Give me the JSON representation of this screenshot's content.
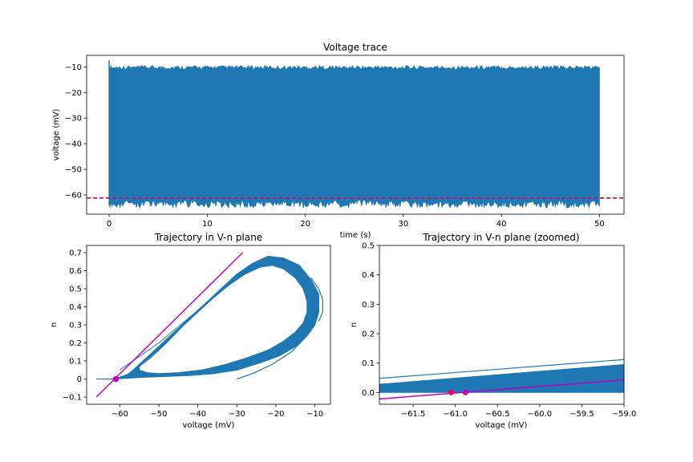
{
  "colors": {
    "trace": "#1f77b4",
    "threshold": "#d62728",
    "threshold_dash": "#9400d3",
    "nullcline": "#bf00bf",
    "fixed_point": "#bf00bf",
    "fixed_point_red": "#ff0050"
  },
  "chart_data": [
    {
      "type": "line",
      "title": "Voltage trace",
      "xlabel": "time (s)",
      "ylabel": "voltage (mV)",
      "xlim": [
        -2.3,
        52.5
      ],
      "ylim": [
        -67.5,
        -5.5
      ],
      "xticks": [
        0,
        10,
        20,
        30,
        40,
        50
      ],
      "yticks": [
        -60,
        -50,
        -40,
        -30,
        -20,
        -10
      ],
      "series": [
        {
          "fill_band": {
            "x": [
              0.05,
              50
            ],
            "ymin": -64,
            "ymax": -10,
            "noise_low": [
              -65,
              -62
            ],
            "noise_high": [
              -11,
              -9.5
            ]
          },
          "onset_spike": {
            "x": 0,
            "y": [
              -7.5,
              -64
            ]
          },
          "threshold_line": {
            "y": -61.2,
            "style": "dashed"
          }
        }
      ]
    },
    {
      "type": "line",
      "title": "Trajectory in V-n plane",
      "xlabel": "voltage (mV)",
      "ylabel": "n",
      "xlim": [
        -68.5,
        -6
      ],
      "ylim": [
        -0.14,
        0.74
      ],
      "xticks": [
        -60,
        -50,
        -40,
        -30,
        -20,
        -10
      ],
      "yticks": [
        -0.1,
        0.0,
        0.1,
        0.2,
        0.3,
        0.4,
        0.5,
        0.6,
        0.7
      ],
      "limit_cycle_outer": [
        [
          -66,
          0.0
        ],
        [
          -62,
          0.0
        ],
        [
          -60,
          0.01
        ],
        [
          -58,
          0.025
        ],
        [
          -56,
          0.06
        ],
        [
          -54,
          0.1
        ],
        [
          -52,
          0.14
        ],
        [
          -50,
          0.18
        ],
        [
          -46,
          0.26
        ],
        [
          -42,
          0.34
        ],
        [
          -38,
          0.42
        ],
        [
          -34,
          0.5
        ],
        [
          -30,
          0.58
        ],
        [
          -26,
          0.64
        ],
        [
          -22,
          0.68
        ],
        [
          -18,
          0.67
        ],
        [
          -14,
          0.63
        ],
        [
          -11,
          0.55
        ],
        [
          -9,
          0.47
        ],
        [
          -9,
          0.37
        ],
        [
          -10,
          0.3
        ],
        [
          -12,
          0.24
        ],
        [
          -15,
          0.18
        ],
        [
          -19,
          0.13
        ],
        [
          -24,
          0.09
        ],
        [
          -30,
          0.05
        ],
        [
          -36,
          0.03
        ],
        [
          -42,
          0.02
        ],
        [
          -48,
          0.015
        ],
        [
          -54,
          0.01
        ],
        [
          -58,
          0.005
        ],
        [
          -62,
          0.0
        ]
      ],
      "limit_cycle_inner": [
        [
          -55,
          0.07
        ],
        [
          -52,
          0.12
        ],
        [
          -48,
          0.2
        ],
        [
          -44,
          0.29
        ],
        [
          -40,
          0.37
        ],
        [
          -36,
          0.45
        ],
        [
          -32,
          0.52
        ],
        [
          -28,
          0.58
        ],
        [
          -24,
          0.62
        ],
        [
          -21,
          0.63
        ],
        [
          -18,
          0.61
        ],
        [
          -15,
          0.56
        ],
        [
          -13,
          0.5
        ],
        [
          -12,
          0.43
        ],
        [
          -12,
          0.37
        ],
        [
          -13,
          0.31
        ],
        [
          -15,
          0.26
        ],
        [
          -18,
          0.21
        ],
        [
          -22,
          0.16
        ],
        [
          -27,
          0.12
        ],
        [
          -33,
          0.08
        ],
        [
          -39,
          0.05
        ],
        [
          -45,
          0.035
        ],
        [
          -50,
          0.03
        ],
        [
          -53,
          0.035
        ],
        [
          -55,
          0.05
        ]
      ],
      "transient_tail": [
        [
          -30,
          0.0
        ],
        [
          -26,
          0.03
        ],
        [
          -21,
          0.08
        ],
        [
          -16,
          0.15
        ],
        [
          -12,
          0.24
        ],
        [
          -10,
          0.3
        ]
      ],
      "outer_swirl": [
        [
          -11,
          0.56
        ],
        [
          -9,
          0.5
        ],
        [
          -8,
          0.44
        ],
        [
          -8,
          0.37
        ],
        [
          -9,
          0.32
        ]
      ],
      "nullcline": {
        "x": [
          -66,
          -28.5
        ],
        "y": [
          -0.1,
          0.7
        ]
      },
      "fixed_point": {
        "x": -61,
        "y": 0.0
      }
    },
    {
      "type": "line",
      "title": "Trajectory in V-n plane (zoomed)",
      "xlabel": "voltage (mV)",
      "ylabel": "n",
      "xlim": [
        -61.9,
        -59.0
      ],
      "ylim": [
        -0.04,
        0.5
      ],
      "xticks": [
        -61.5,
        -61.0,
        -60.5,
        -60.0,
        -59.5,
        -59.0
      ],
      "xtick_labels": [
        "−61.5",
        "−61.0",
        "−60.5",
        "−60.0",
        "−59.5",
        "−59.0"
      ],
      "yticks": [
        0.0,
        0.1,
        0.2,
        0.3,
        0.4,
        0.5
      ],
      "band": {
        "x": [
          -61.9,
          -59.0
        ],
        "bottom": 0.0,
        "top_left": 0.028,
        "top_right": 0.095
      },
      "upper_trace": {
        "x": [
          -61.9,
          -59.0
        ],
        "y": [
          0.048,
          0.112
        ]
      },
      "nullcline": {
        "x": [
          -61.9,
          -59.0
        ],
        "y": [
          -0.022,
          0.043
        ]
      },
      "fixed_points": [
        {
          "x": -61.05,
          "y": 0.0,
          "color_key": "fixed_point_red"
        },
        {
          "x": -60.88,
          "y": 0.0,
          "color_key": "fixed_point"
        }
      ]
    }
  ]
}
